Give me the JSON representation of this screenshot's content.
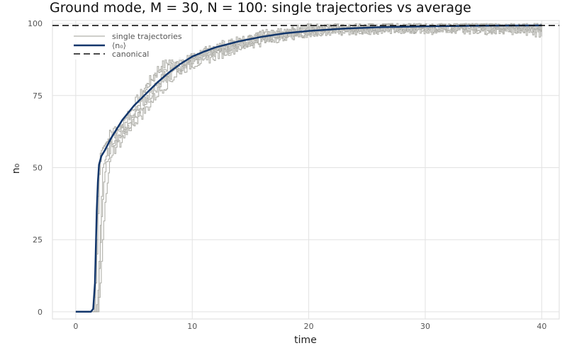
{
  "chart_data": {
    "type": "line",
    "title": "Ground mode, M = 30, N = 100: single trajectories vs average",
    "xlabel": "time",
    "ylabel": "n₀",
    "xlim": [
      -2,
      41.5
    ],
    "ylim": [
      -2.5,
      101
    ],
    "xticks": [
      0,
      10,
      20,
      30,
      40
    ],
    "yticks": [
      0,
      25,
      50,
      75,
      100
    ],
    "grid": true,
    "legend": {
      "placement": "top-left",
      "entries": [
        "single trajectories",
        "⟨n₀⟩",
        "canonical"
      ]
    },
    "series": [
      {
        "name": "⟨n₀⟩",
        "style": "solid",
        "color": "#12366b",
        "x": [
          0,
          1.3,
          1.5,
          1.65,
          1.8,
          1.9,
          2.0,
          2.2,
          2.5,
          3,
          4,
          5,
          6,
          7,
          8,
          9,
          10,
          11,
          12,
          14,
          16,
          18,
          20,
          23,
          26,
          30,
          35,
          40
        ],
        "y": [
          0,
          0,
          1,
          10,
          35,
          45,
          51,
          54,
          56,
          60,
          66.5,
          71.5,
          75.5,
          79.5,
          83,
          86,
          88.5,
          90.2,
          91.7,
          93.8,
          95.4,
          96.6,
          97.4,
          98.2,
          98.7,
          99.0,
          99.2,
          99.3
        ]
      },
      {
        "name": "canonical",
        "style": "dashed",
        "color": "#111111",
        "x": [
          -2,
          41.5
        ],
        "y": [
          99.3,
          99.3
        ]
      },
      {
        "name": "single trajectories",
        "style": "step",
        "color": "#b0b0aa",
        "trajectories": [
          {
            "x": [
              0,
              1.5,
              1.7,
              1.9,
              2.1,
              2.3,
              3,
              4,
              5,
              6,
              7,
              8,
              9,
              10,
              12,
              14,
              16,
              18,
              20,
              25,
              30,
              35,
              40
            ],
            "y": [
              0,
              0,
              10,
              40,
              55,
              57,
              61,
              64,
              72,
              78,
              84,
              87,
              84,
              88,
              91,
              93,
              96,
              97,
              97,
              98,
              99,
              98,
              99
            ]
          },
          {
            "x": [
              0,
              1.6,
              1.8,
              2.0,
              2.2,
              2.5,
              3,
              4,
              5,
              6,
              7,
              8,
              9,
              10,
              12,
              14,
              16,
              18,
              20,
              25,
              30,
              35,
              40
            ],
            "y": [
              0,
              0,
              20,
              48,
              56,
              58,
              62,
              66,
              70,
              77,
              83,
              85,
              86,
              87,
              90,
              94,
              95,
              96,
              98,
              99,
              98,
              99,
              98
            ]
          },
          {
            "x": [
              0,
              1.7,
              1.9,
              2.1,
              2.3,
              2.6,
              3,
              4,
              5,
              6,
              7,
              8,
              9,
              10,
              12,
              14,
              16,
              18,
              20,
              25,
              30,
              35,
              40
            ],
            "y": [
              0,
              0,
              5,
              30,
              50,
              54,
              58,
              63,
              67,
              73,
              78,
              82,
              85,
              88,
              92,
              93,
              95,
              97,
              98,
              98,
              99,
              99,
              97
            ]
          },
          {
            "x": [
              0,
              1.8,
              2.0,
              2.2,
              2.4,
              2.6,
              3,
              4,
              5,
              6,
              7,
              8,
              9,
              10,
              12,
              14,
              16,
              18,
              20,
              25,
              30,
              35,
              40
            ],
            "y": [
              0,
              0,
              15,
              33,
              45,
              52,
              57,
              61,
              66,
              70,
              76,
              80,
              84,
              86,
              89,
              92,
              94,
              96,
              97,
              98,
              98,
              100,
              99
            ]
          },
          {
            "x": [
              0,
              1.9,
              2.1,
              2.3,
              2.5,
              2.8,
              3,
              4,
              5,
              6,
              7,
              8,
              9,
              10,
              12,
              14,
              16,
              18,
              20,
              25,
              30,
              35,
              40
            ],
            "y": [
              0,
              0,
              10,
              25,
              38,
              47,
              55,
              60,
              68,
              74,
              80,
              83,
              87,
              88,
              90,
              92,
              96,
              96,
              97,
              99,
              99,
              98,
              99
            ]
          }
        ]
      }
    ]
  }
}
